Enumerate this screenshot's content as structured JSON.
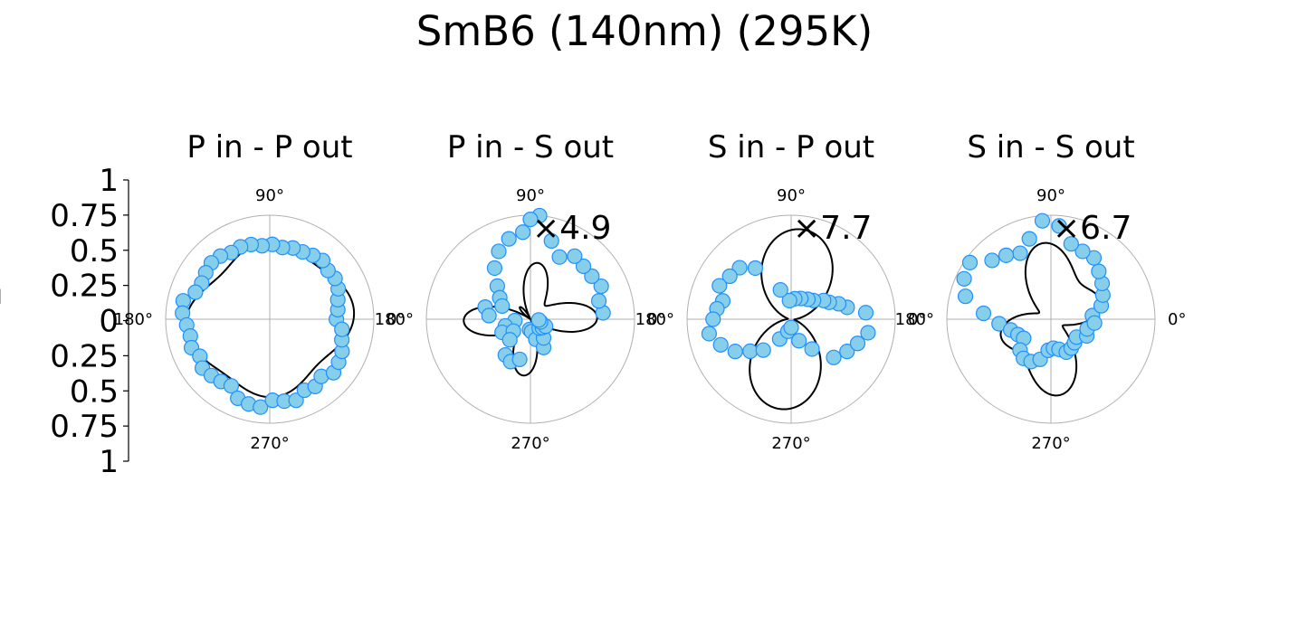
{
  "figure": {
    "title": "SmB6 (140nm) (295K)"
  },
  "y_axis": {
    "ticks": [
      "1",
      "0.75",
      "0.5",
      "0.25",
      "0",
      "0.25",
      "0.5",
      "0.75",
      "1"
    ],
    "label_fragment": "I"
  },
  "style": {
    "marker_fill": "#87CEEB",
    "marker_edge": "#1E90FF",
    "fit_line": "#000000",
    "grid": "#b0b0b0"
  },
  "chart_data": [
    {
      "type": "scatter",
      "projection": "polar",
      "title": "P in - P out",
      "multiplier": "",
      "angle_tick_labels": [
        "0°",
        "90°",
        "180°",
        "270°"
      ],
      "r_range": [
        0,
        1
      ],
      "grid": true,
      "fit": {
        "r0": 0.72,
        "harmonics": [
          [
            2,
            0.04,
            0.8
          ],
          [
            4,
            0.06,
            0.3
          ]
        ]
      },
      "points": [
        [
          0,
          0.64
        ],
        [
          8,
          0.66
        ],
        [
          16,
          0.68
        ],
        [
          24,
          0.72
        ],
        [
          32,
          0.74
        ],
        [
          40,
          0.73
        ],
        [
          48,
          0.76
        ],
        [
          56,
          0.74
        ],
        [
          64,
          0.72
        ],
        [
          72,
          0.72
        ],
        [
          80,
          0.7
        ],
        [
          88,
          0.72
        ],
        [
          96,
          0.71
        ],
        [
          104,
          0.74
        ],
        [
          112,
          0.75
        ],
        [
          120,
          0.74
        ],
        [
          128,
          0.77
        ],
        [
          136,
          0.78
        ],
        [
          144,
          0.76
        ],
        [
          152,
          0.74
        ],
        [
          160,
          0.76
        ],
        [
          168,
          0.85
        ],
        [
          176,
          0.84
        ],
        [
          184,
          0.8
        ],
        [
          192,
          0.78
        ],
        [
          200,
          0.8
        ],
        [
          208,
          0.76
        ],
        [
          216,
          0.8
        ],
        [
          224,
          0.78
        ],
        [
          232,
          0.76
        ],
        [
          240,
          0.74
        ],
        [
          248,
          0.82
        ],
        [
          256,
          0.84
        ],
        [
          264,
          0.85
        ],
        [
          272,
          0.78
        ],
        [
          280,
          0.8
        ],
        [
          288,
          0.82
        ],
        [
          296,
          0.76
        ],
        [
          304,
          0.78
        ],
        [
          312,
          0.74
        ],
        [
          320,
          0.8
        ],
        [
          328,
          0.78
        ],
        [
          336,
          0.76
        ],
        [
          344,
          0.72
        ],
        [
          352,
          0.7
        ]
      ]
    },
    {
      "type": "scatter",
      "projection": "polar",
      "title": "P in - S out",
      "multiplier": "×4.9",
      "angle_tick_labels": [
        "0°",
        "90°",
        "180°",
        "270°"
      ],
      "r_range": [
        0,
        1
      ],
      "grid": true,
      "fit": {
        "r0": 0.3,
        "harmonics": [
          [
            2,
            0.18,
            1.2
          ],
          [
            4,
            0.28,
            -0.2
          ]
        ]
      },
      "points": [
        [
          5,
          0.7
        ],
        [
          15,
          0.68
        ],
        [
          25,
          0.75
        ],
        [
          35,
          0.72
        ],
        [
          45,
          0.72
        ],
        [
          55,
          0.74
        ],
        [
          65,
          0.66
        ],
        [
          75,
          0.78
        ],
        [
          85,
          1.0
        ],
        [
          90,
          0.96
        ],
        [
          95,
          0.84
        ],
        [
          105,
          0.8
        ],
        [
          115,
          0.72
        ],
        [
          125,
          0.6
        ],
        [
          135,
          0.45
        ],
        [
          145,
          0.36
        ],
        [
          155,
          0.3
        ],
        [
          165,
          0.45
        ],
        [
          175,
          0.4
        ],
        [
          185,
          0.15
        ],
        [
          195,
          0.25
        ],
        [
          205,
          0.3
        ],
        [
          215,
          0.2
        ],
        [
          225,
          0.28
        ],
        [
          235,
          0.42
        ],
        [
          245,
          0.45
        ],
        [
          255,
          0.4
        ],
        [
          265,
          0.1
        ],
        [
          275,
          0.12
        ],
        [
          285,
          0.2
        ],
        [
          295,
          0.3
        ],
        [
          305,
          0.22
        ],
        [
          315,
          0.12
        ],
        [
          325,
          0.14
        ],
        [
          335,
          0.16
        ],
        [
          345,
          0.1
        ],
        [
          355,
          0.08
        ]
      ]
    },
    {
      "type": "scatter",
      "projection": "polar",
      "title": "S in - P out",
      "multiplier": "×7.7",
      "angle_tick_labels": [
        "0°",
        "90°",
        "180°",
        "270°"
      ],
      "r_range": [
        0,
        1
      ],
      "grid": true,
      "fit": {
        "r0": 0.45,
        "harmonics": [
          [
            2,
            0.42,
            2.9
          ]
        ]
      },
      "points": [
        [
          5,
          0.72
        ],
        [
          12,
          0.55
        ],
        [
          18,
          0.48
        ],
        [
          24,
          0.4
        ],
        [
          30,
          0.36
        ],
        [
          40,
          0.28
        ],
        [
          50,
          0.25
        ],
        [
          65,
          0.22
        ],
        [
          80,
          0.2
        ],
        [
          95,
          0.18
        ],
        [
          110,
          0.3
        ],
        [
          125,
          0.6
        ],
        [
          135,
          0.7
        ],
        [
          145,
          0.72
        ],
        [
          155,
          0.76
        ],
        [
          165,
          0.68
        ],
        [
          172,
          0.72
        ],
        [
          180,
          0.75
        ],
        [
          190,
          0.8
        ],
        [
          200,
          0.72
        ],
        [
          210,
          0.62
        ],
        [
          218,
          0.5
        ],
        [
          228,
          0.4
        ],
        [
          240,
          0.22
        ],
        [
          255,
          0.12
        ],
        [
          270,
          0.08
        ],
        [
          290,
          0.22
        ],
        [
          305,
          0.35
        ],
        [
          318,
          0.55
        ],
        [
          330,
          0.62
        ],
        [
          340,
          0.68
        ],
        [
          350,
          0.75
        ]
      ]
    },
    {
      "type": "scatter",
      "projection": "polar",
      "title": "S in - S out",
      "multiplier": "×6.7",
      "angle_tick_labels": [
        "0°",
        "180°",
        "90°",
        "270°"
      ],
      "r_range": [
        0,
        1
      ],
      "grid": true,
      "fit": {
        "r0": 0.45,
        "harmonics": [
          [
            2,
            0.2,
            2.6
          ],
          [
            4,
            0.15,
            0.8
          ]
        ]
      },
      "points": [
        [
          5,
          0.4
        ],
        [
          15,
          0.5
        ],
        [
          25,
          0.55
        ],
        [
          35,
          0.6
        ],
        [
          45,
          0.65
        ],
        [
          55,
          0.72
        ],
        [
          65,
          0.72
        ],
        [
          75,
          0.75
        ],
        [
          85,
          0.9
        ],
        [
          95,
          0.95
        ],
        [
          105,
          0.8
        ],
        [
          115,
          0.7
        ],
        [
          125,
          0.75
        ],
        [
          135,
          0.8
        ],
        [
          145,
          0.95
        ],
        [
          155,
          0.92
        ],
        [
          165,
          0.85
        ],
        [
          175,
          0.65
        ],
        [
          185,
          0.5
        ],
        [
          195,
          0.4
        ],
        [
          205,
          0.35
        ],
        [
          215,
          0.32
        ],
        [
          225,
          0.42
        ],
        [
          235,
          0.46
        ],
        [
          245,
          0.45
        ],
        [
          255,
          0.4
        ],
        [
          265,
          0.3
        ],
        [
          275,
          0.28
        ],
        [
          285,
          0.3
        ],
        [
          295,
          0.35
        ],
        [
          305,
          0.34
        ],
        [
          315,
          0.32
        ],
        [
          325,
          0.3
        ],
        [
          335,
          0.38
        ],
        [
          345,
          0.36
        ],
        [
          355,
          0.42
        ]
      ]
    }
  ]
}
